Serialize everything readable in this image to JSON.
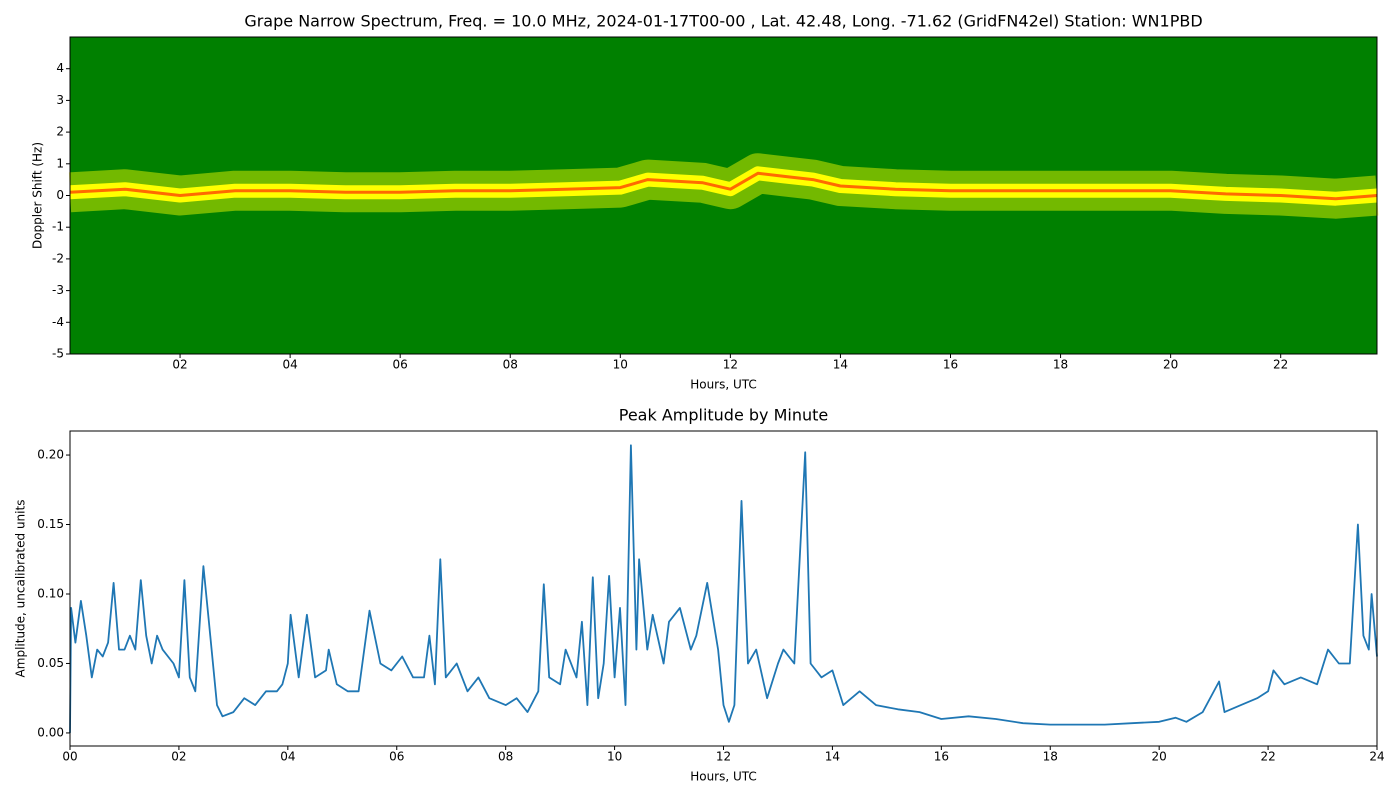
{
  "chart_data": [
    {
      "type": "spectrogram",
      "title": "Grape Narrow Spectrum, Freq. = 10.0 MHz, 2024-01-17T00-00 , Lat.  42.48, Long. -71.62 (GridFN42el) Station: WN1PBD",
      "xlabel": "Hours, UTC",
      "ylabel": "Doppler Shift (Hz)",
      "background": "#008000",
      "color": "#ffff00",
      "trace_color": "#ff6a00",
      "x": [
        0,
        1,
        2,
        3,
        4,
        5,
        6,
        7,
        8,
        9,
        10,
        10.5,
        11.5,
        12,
        12.5,
        13,
        13.5,
        14,
        15,
        16,
        18,
        20,
        21,
        22,
        23,
        23.75
      ],
      "values": [
        0.1,
        0.2,
        0.0,
        0.15,
        0.15,
        0.1,
        0.1,
        0.15,
        0.15,
        0.2,
        0.25,
        0.5,
        0.4,
        0.2,
        0.7,
        0.6,
        0.5,
        0.3,
        0.2,
        0.15,
        0.15,
        0.15,
        0.05,
        0.0,
        -0.1,
        0.0
      ],
      "xlim": [
        0,
        23.75
      ],
      "ylim": [
        -5,
        5
      ],
      "xticks": [
        {
          "value": 2,
          "label": "02"
        },
        {
          "value": 4,
          "label": "04"
        },
        {
          "value": 6,
          "label": "06"
        },
        {
          "value": 8,
          "label": "08"
        },
        10,
        12,
        14,
        16,
        18,
        20,
        22
      ],
      "yticks": [
        -5,
        -4,
        -3,
        -2,
        -1,
        0,
        1,
        2,
        3,
        4
      ]
    },
    {
      "type": "line",
      "title": "Peak Amplitude by Minute",
      "xlabel": "Hours, UTC",
      "ylabel": "Amplitude, uncalibrated units",
      "color": "#1f77b4",
      "x": [
        0,
        0.02,
        0.1,
        0.2,
        0.3,
        0.4,
        0.5,
        0.6,
        0.7,
        0.8,
        0.9,
        1.0,
        1.1,
        1.2,
        1.3,
        1.4,
        1.5,
        1.6,
        1.7,
        1.9,
        2.0,
        2.1,
        2.2,
        2.3,
        2.45,
        2.55,
        2.7,
        2.8,
        3.0,
        3.2,
        3.4,
        3.6,
        3.8,
        3.9,
        4.0,
        4.05,
        4.2,
        4.35,
        4.5,
        4.7,
        4.75,
        4.9,
        5.1,
        5.3,
        5.5,
        5.7,
        5.9,
        6.1,
        6.3,
        6.5,
        6.6,
        6.7,
        6.8,
        6.9,
        7.1,
        7.3,
        7.5,
        7.7,
        8.0,
        8.2,
        8.4,
        8.6,
        8.7,
        8.8,
        9.0,
        9.1,
        9.3,
        9.4,
        9.5,
        9.6,
        9.7,
        9.8,
        9.9,
        10.0,
        10.1,
        10.2,
        10.3,
        10.4,
        10.45,
        10.6,
        10.7,
        10.9,
        11.0,
        11.2,
        11.4,
        11.5,
        11.7,
        11.9,
        12.0,
        12.1,
        12.2,
        12.33,
        12.45,
        12.6,
        12.8,
        13.0,
        13.1,
        13.3,
        13.5,
        13.6,
        13.8,
        14.0,
        14.2,
        14.5,
        14.8,
        15.2,
        15.6,
        16.0,
        16.5,
        17.0,
        17.5,
        18.0,
        18.5,
        19.0,
        19.5,
        20.0,
        20.3,
        20.5,
        20.8,
        21.1,
        21.2,
        21.5,
        21.8,
        22.0,
        22.1,
        22.3,
        22.6,
        22.9,
        23.1,
        23.3,
        23.5,
        23.65,
        23.75,
        23.85,
        23.9,
        24.0
      ],
      "values": [
        0.0,
        0.09,
        0.065,
        0.095,
        0.07,
        0.04,
        0.06,
        0.055,
        0.065,
        0.108,
        0.06,
        0.06,
        0.07,
        0.06,
        0.11,
        0.07,
        0.05,
        0.07,
        0.06,
        0.05,
        0.04,
        0.11,
        0.04,
        0.03,
        0.12,
        0.08,
        0.02,
        0.012,
        0.015,
        0.025,
        0.02,
        0.03,
        0.03,
        0.035,
        0.05,
        0.085,
        0.04,
        0.085,
        0.04,
        0.045,
        0.06,
        0.035,
        0.03,
        0.03,
        0.088,
        0.05,
        0.045,
        0.055,
        0.04,
        0.04,
        0.07,
        0.035,
        0.125,
        0.04,
        0.05,
        0.03,
        0.04,
        0.025,
        0.02,
        0.025,
        0.015,
        0.03,
        0.107,
        0.04,
        0.035,
        0.06,
        0.04,
        0.08,
        0.02,
        0.112,
        0.025,
        0.05,
        0.113,
        0.04,
        0.09,
        0.02,
        0.207,
        0.06,
        0.125,
        0.06,
        0.085,
        0.05,
        0.08,
        0.09,
        0.06,
        0.07,
        0.108,
        0.06,
        0.02,
        0.008,
        0.02,
        0.167,
        0.05,
        0.06,
        0.025,
        0.05,
        0.06,
        0.05,
        0.202,
        0.05,
        0.04,
        0.045,
        0.02,
        0.03,
        0.02,
        0.017,
        0.015,
        0.01,
        0.012,
        0.01,
        0.007,
        0.006,
        0.006,
        0.006,
        0.007,
        0.008,
        0.011,
        0.008,
        0.015,
        0.037,
        0.015,
        0.02,
        0.025,
        0.03,
        0.045,
        0.035,
        0.04,
        0.035,
        0.06,
        0.05,
        0.05,
        0.15,
        0.07,
        0.06,
        0.1,
        0.055
      ],
      "xlim": [
        0,
        24
      ],
      "ylim": [
        -0.0094,
        0.2173
      ],
      "xticks": [
        {
          "value": 0,
          "label": "00"
        },
        {
          "value": 2,
          "label": "02"
        },
        {
          "value": 4,
          "label": "04"
        },
        {
          "value": 6,
          "label": "06"
        },
        {
          "value": 8,
          "label": "08"
        },
        10,
        12,
        14,
        16,
        18,
        20,
        22,
        24
      ],
      "yticks": [
        {
          "value": 0,
          "label": "0.00"
        },
        0.05,
        {
          "value": 0.1,
          "label": "0.10"
        },
        0.15,
        {
          "value": 0.2,
          "label": "0.20"
        }
      ]
    }
  ]
}
